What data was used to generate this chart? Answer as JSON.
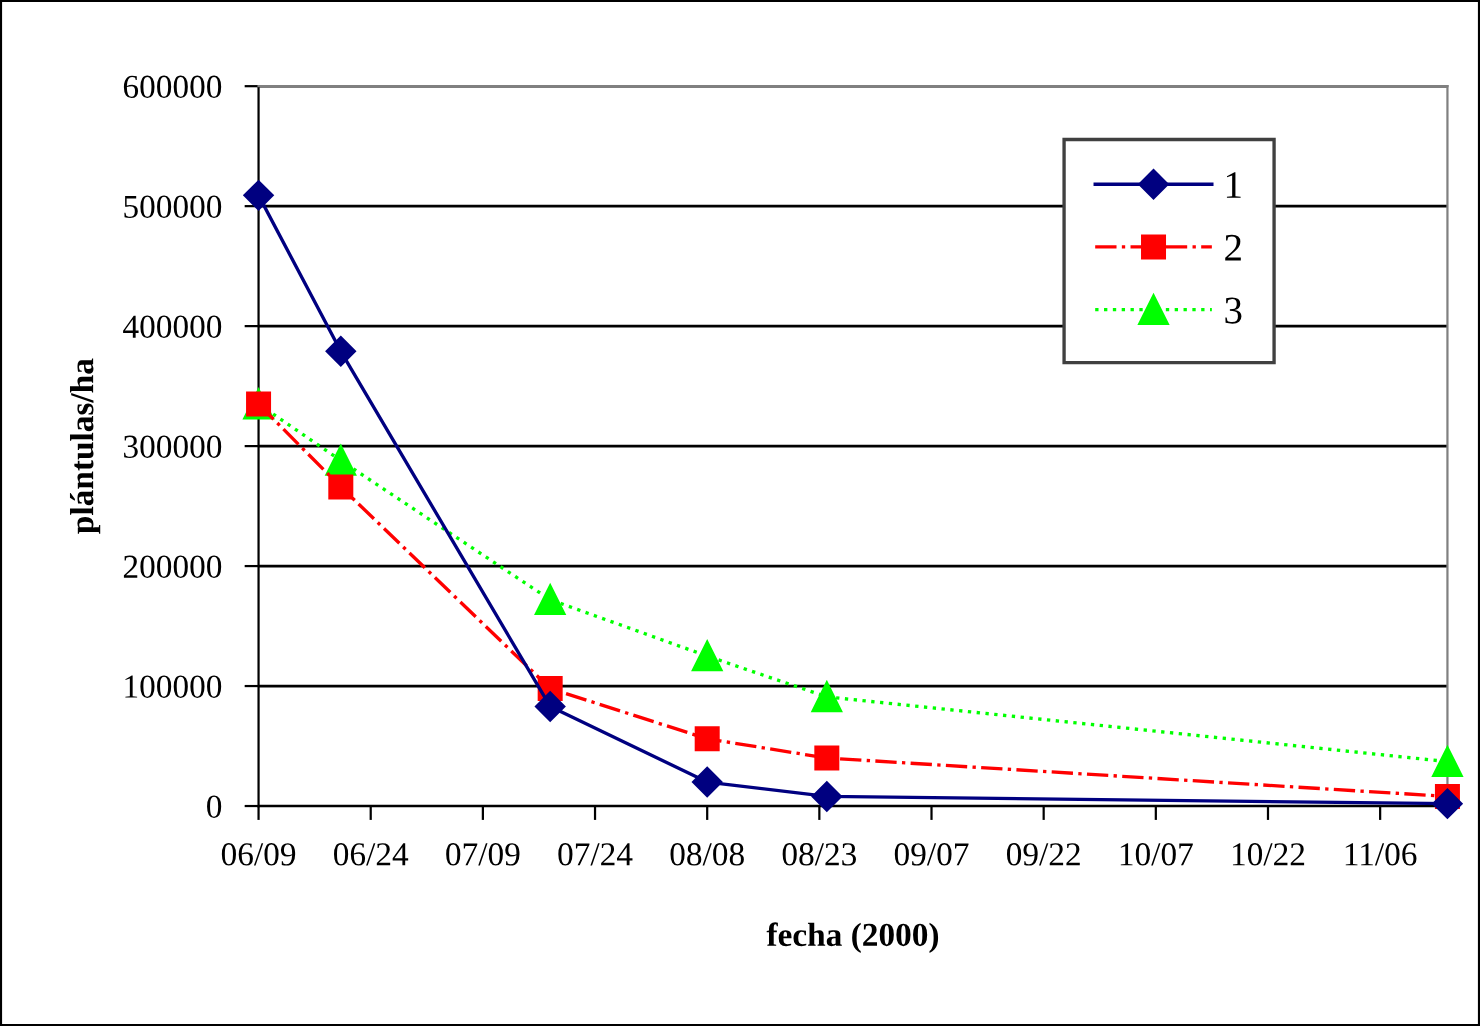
{
  "chart_data": {
    "type": "line",
    "xlabel": "fecha (2000)",
    "ylabel": "plántulas/ha",
    "xlim": [
      "2000-06-09",
      "2000-11-15"
    ],
    "xticks": [
      {
        "value": "2000-06-09",
        "label": "06/09"
      },
      {
        "value": "2000-06-24",
        "label": "06/24"
      },
      {
        "value": "2000-07-09",
        "label": "07/09"
      },
      {
        "value": "2000-07-24",
        "label": "07/24"
      },
      {
        "value": "2000-08-08",
        "label": "08/08"
      },
      {
        "value": "2000-08-23",
        "label": "08/23"
      },
      {
        "value": "2000-09-07",
        "label": "09/07"
      },
      {
        "value": "2000-09-22",
        "label": "09/22"
      },
      {
        "value": "2000-10-07",
        "label": "10/07"
      },
      {
        "value": "2000-10-22",
        "label": "10/22"
      },
      {
        "value": "2000-11-06",
        "label": "11/06"
      }
    ],
    "ylim": [
      0,
      600000
    ],
    "yticks": [
      0,
      100000,
      200000,
      300000,
      400000,
      500000,
      600000
    ],
    "grid": "y",
    "legend": "top right",
    "series": [
      {
        "name": "1",
        "color": "#000080",
        "marker": "diamond",
        "line_style": "solid",
        "x": [
          "2000-06-09",
          "2000-06-20",
          "2000-07-18",
          "2000-08-08",
          "2000-08-24",
          "2000-11-15"
        ],
        "values": [
          509000,
          379000,
          83000,
          20000,
          8000,
          2000
        ]
      },
      {
        "name": "2",
        "color": "#ff0000",
        "marker": "square",
        "line_style": "dashdot",
        "x": [
          "2000-06-09",
          "2000-06-20",
          "2000-07-18",
          "2000-08-08",
          "2000-08-24",
          "2000-11-15"
        ],
        "values": [
          335000,
          266000,
          98000,
          56000,
          40000,
          8000
        ]
      },
      {
        "name": "3",
        "color": "#00ff00",
        "marker": "triangle",
        "line_style": "dotted",
        "x": [
          "2000-06-09",
          "2000-06-20",
          "2000-07-18",
          "2000-08-08",
          "2000-08-24",
          "2000-11-15"
        ],
        "values": [
          335000,
          288000,
          172000,
          125000,
          91000,
          37000
        ]
      }
    ]
  }
}
